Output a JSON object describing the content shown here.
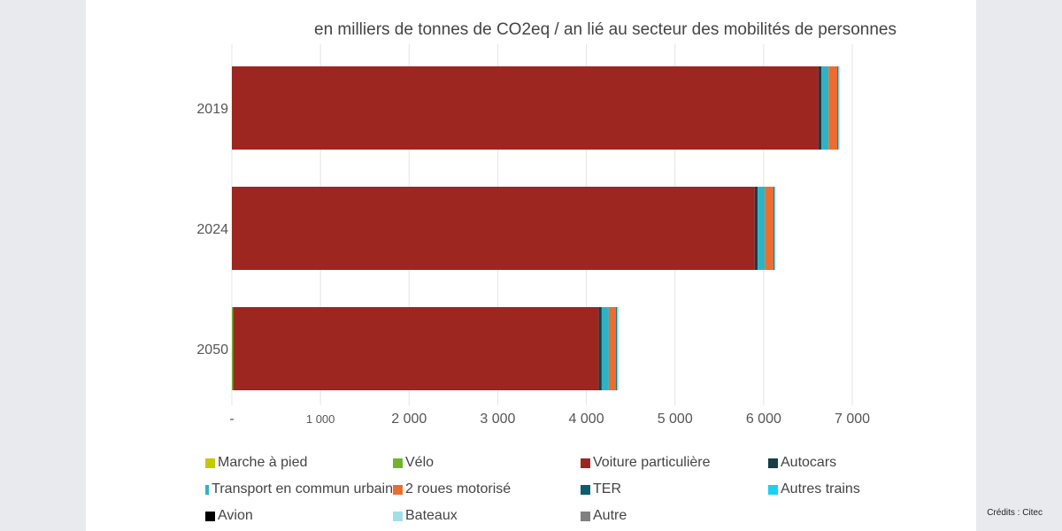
{
  "chart_data": {
    "type": "bar",
    "orientation": "horizontal",
    "stacked": true,
    "title": "en milliers de tonnes de CO2eq / an lié au secteur des mobilités de personnes",
    "categories": [
      "2019",
      "2024",
      "2050"
    ],
    "xlim": [
      0,
      7000
    ],
    "xticks": [
      0,
      1000,
      2000,
      3000,
      4000,
      5000,
      6000,
      7000
    ],
    "xtick_labels": [
      "-",
      "1 000",
      "2 000",
      "3 000",
      "4 000",
      "5 000",
      "6 000",
      "7 000"
    ],
    "grid": true,
    "legend_position": "bottom",
    "series": [
      {
        "name": "Marche à pied",
        "color": "#c5c900",
        "values": [
          0,
          0,
          0
        ]
      },
      {
        "name": "Vélo",
        "color": "#6fb52c",
        "values": [
          0,
          0,
          15
        ]
      },
      {
        "name": "Voiture particulière",
        "color": "#9e2620",
        "values": [
          6620,
          5900,
          4125
        ]
      },
      {
        "name": "Autocars",
        "color": "#173f48",
        "values": [
          33,
          33,
          33
        ]
      },
      {
        "name": "Transport en commun urbain",
        "color": "#2eb3c6",
        "values": [
          80,
          80,
          80
        ]
      },
      {
        "name": "2 roues motorisé",
        "color": "#ec6d2f",
        "values": [
          100,
          97,
          80
        ]
      },
      {
        "name": "TER",
        "color": "#0b5e6b",
        "values": [
          10,
          10,
          10
        ]
      },
      {
        "name": "Autres trains",
        "color": "#1ad1f0",
        "values": [
          5,
          5,
          5
        ]
      },
      {
        "name": "Avion",
        "color": "#000000",
        "values": [
          0,
          0,
          0
        ]
      },
      {
        "name": "Bateaux",
        "color": "#a4dfe8",
        "values": [
          10,
          10,
          15
        ]
      },
      {
        "name": "Autre",
        "color": "#808080",
        "values": [
          0,
          0,
          0
        ]
      }
    ]
  },
  "credits": "Crédits : Citec"
}
